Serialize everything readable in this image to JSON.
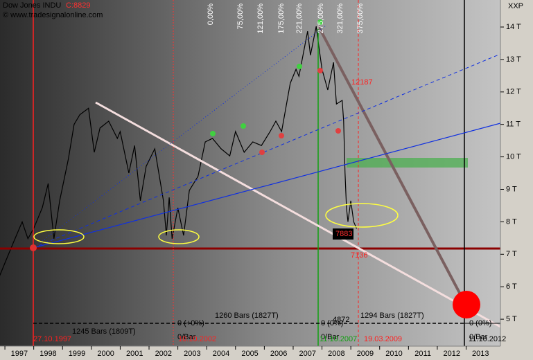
{
  "header": {
    "close": "C:8829",
    "copyright": "© www.tradesignalonline.com",
    "scale_label": "XXP"
  },
  "chart_data": {
    "type": "line",
    "x": [
      1996.8,
      1997.0,
      1997.3,
      1997.6,
      1997.8,
      1998.0,
      1998.3,
      1998.5,
      1998.7,
      1998.9,
      1999.2,
      1999.4,
      1999.6,
      1999.9,
      2000.1,
      2000.3,
      2000.6,
      2000.9,
      2001.0,
      2001.3,
      2001.5,
      2001.7,
      2001.9,
      2002.2,
      2002.5,
      2002.6,
      2002.7,
      2002.8,
      2003.0,
      2003.2,
      2003.4,
      2003.7,
      2003.95,
      2004.2,
      2004.5,
      2004.8,
      2005.0,
      2005.3,
      2005.6,
      2005.9,
      2006.2,
      2006.4,
      2006.6,
      2006.9,
      2007.1,
      2007.2,
      2007.5,
      2007.6,
      2007.8,
      2007.9,
      2008.0,
      2008.2,
      2008.4,
      2008.5,
      2008.7,
      2008.75,
      2008.8,
      2008.85,
      2008.9,
      2009.0,
      2009.1,
      2009.2
    ],
    "series": [
      {
        "name": "Dow Jones INDU",
        "color": "#000000",
        "values": [
          6300,
          6730,
          7370,
          8000,
          7480,
          7800,
          8440,
          9180,
          7480,
          8650,
          9930,
          11000,
          11300,
          11500,
          10140,
          10890,
          11100,
          10570,
          10780,
          9500,
          10350,
          8650,
          9710,
          10250,
          8650,
          7580,
          8750,
          7480,
          8430,
          7580,
          8970,
          9400,
          10460,
          10570,
          10250,
          10030,
          10780,
          10140,
          10460,
          10350,
          10780,
          11100,
          10780,
          12270,
          12700,
          12480,
          13870,
          13130,
          14020,
          13340,
          12700,
          12060,
          12910,
          11630,
          11740,
          11100,
          9500,
          8430,
          8000,
          8650,
          8000,
          7790
        ]
      }
    ],
    "xlim": [
      1996.83,
      2014.19
    ],
    "xticks": [
      1997,
      1998,
      1999,
      2000,
      2001,
      2002,
      2003,
      2004,
      2005,
      2006,
      2007,
      2008,
      2009,
      2010,
      2011,
      2012,
      2013
    ],
    "ylim": [
      4170,
      14832
    ],
    "yticks": [
      {
        "value": 5000,
        "label": "5 T"
      },
      {
        "value": 6000,
        "label": "6 T"
      },
      {
        "value": 7000,
        "label": "7 T"
      },
      {
        "value": 8000,
        "label": "8 T"
      },
      {
        "value": 9000,
        "label": "9 T"
      },
      {
        "value": 10000,
        "label": "10 T"
      },
      {
        "value": 11000,
        "label": "11 T"
      },
      {
        "value": 12000,
        "label": "12 T"
      },
      {
        "value": 13000,
        "label": "13 T"
      },
      {
        "value": 14000,
        "label": "14 T"
      }
    ],
    "annotations": [
      "0,00%",
      "75,00%",
      "121,00%",
      "175,00%",
      "221,00%",
      "275,00%",
      "321,00%",
      "375,00%",
      "12187",
      "7883",
      "7136",
      "4872",
      "1245 Bars (1809T)",
      "1260 Bars (1827T)",
      "1294 Bars (1827T)",
      "0 (+0%)",
      "0/Bar",
      "0 (0%)",
      "0/Bar",
      "0 (0%)",
      "0/Bar",
      "27.10.1997",
      "10.10.2002",
      "11.10.2007",
      "19.03.2009",
      "11.10.2012"
    ]
  }
}
